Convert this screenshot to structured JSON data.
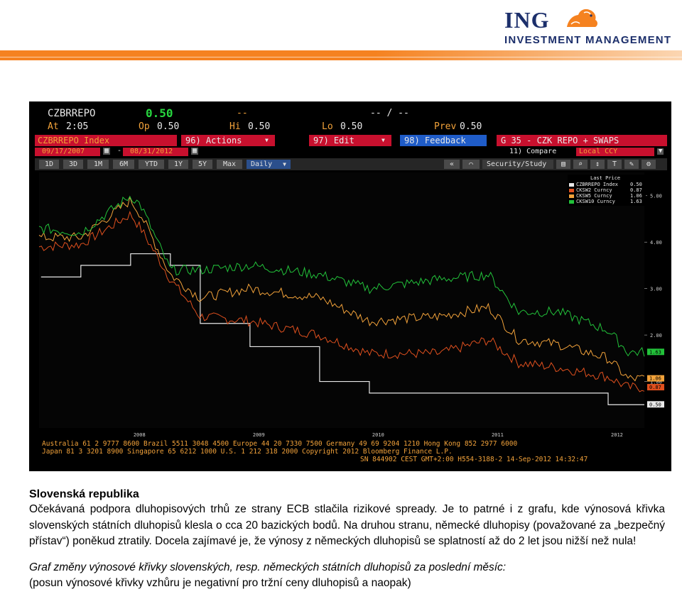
{
  "logo": {
    "brand": "ING",
    "subtitle": "INVESTMENT MANAGEMENT"
  },
  "colors": {
    "ing_blue": "#1c2f6b",
    "ing_orange": "#f58220",
    "terminal_amber": "#f2a23a",
    "terminal_red": "#c8102e"
  },
  "terminal": {
    "ticker": "CZBRREPO",
    "last": "0.50",
    "dash1": "--",
    "dash2": "-- / --",
    "at_label": "At",
    "at_time": "2:05",
    "op_label": "Op",
    "op_val": "0.50",
    "hi_label": "Hi",
    "hi_val": "0.50",
    "lo_label": "Lo",
    "lo_val": "0.50",
    "prev_label": "Prev",
    "prev_val": "0.50",
    "index_field": "CZBRREPO Index",
    "actions": "96) Actions",
    "edit": "97) Edit",
    "feedback": "98) Feedback",
    "graph_title": "G 35 - CZK REPO + SWAPS",
    "date_from": "09/17/2007",
    "date_to": "08/31/2012",
    "compare": "11) Compare",
    "currency": "Local CCY",
    "ranges": [
      "1D",
      "3D",
      "1M",
      "6M",
      "YTD",
      "1Y",
      "5Y",
      "Max"
    ],
    "period": "Daily",
    "security_study": "Security/Study",
    "legend_header": "Last Price",
    "legend": [
      {
        "name": "CZBRREPO Index",
        "value": "0.50",
        "color": "#e8e8e8"
      },
      {
        "name": "CKSW2 Curncy",
        "value": "0.87",
        "color": "#e0501e"
      },
      {
        "name": "CKSW5 Curncy",
        "value": "1.06",
        "color": "#f2a23a"
      },
      {
        "name": "CKSW10 Curncy",
        "value": "1.63",
        "color": "#22c23a"
      }
    ],
    "y_ticks": [
      "5.00",
      "4.00",
      "3.00",
      "2.00",
      "1.00"
    ],
    "end_labels": [
      "1.63",
      "1.06",
      "0.87",
      "0.50"
    ],
    "x_ticks": [
      "2007",
      "2008",
      "2009",
      "2010",
      "2011",
      "2012"
    ],
    "footer": [
      "Australia 61 2 9777 8600 Brazil 5511 3048 4500 Europe 44 20 7330 7500 Germany 49 69 9204 1210 Hong Kong 852 2977 6000",
      "Japan 81 3 3201 8900          Singapore 65 6212 1000     U.S. 1 212 318 2000        Copyright 2012 Bloomberg Finance L.P.",
      "SN 844902 CEST  GMT+2:00 H554-3188-2 14-Sep-2012 14:32:47"
    ]
  },
  "chart_data": {
    "type": "line",
    "xlabel": "",
    "ylabel": "",
    "ylim": [
      0,
      5.5
    ],
    "x": [
      "2007-09",
      "2008-01",
      "2008-06",
      "2008-07",
      "2008-10",
      "2009-01",
      "2009-06",
      "2010-01",
      "2010-06",
      "2011-01",
      "2011-06",
      "2011-09",
      "2012-01",
      "2012-06",
      "2012-08"
    ],
    "series": [
      {
        "name": "CZBRREPO Index",
        "values": [
          3.25,
          3.5,
          3.75,
          3.75,
          3.5,
          2.25,
          1.75,
          1.0,
          0.75,
          0.75,
          0.75,
          0.75,
          0.75,
          0.5,
          0.5
        ]
      },
      {
        "name": "CKSW2 Curncy",
        "values": [
          3.9,
          3.95,
          4.6,
          4.3,
          3.2,
          2.4,
          2.3,
          2.0,
          1.6,
          1.6,
          1.9,
          1.4,
          1.3,
          1.1,
          0.87
        ]
      },
      {
        "name": "CKSW5 Curncy",
        "values": [
          4.1,
          4.1,
          4.9,
          4.6,
          3.3,
          2.8,
          3.0,
          2.8,
          2.3,
          2.4,
          2.6,
          1.9,
          1.8,
          1.5,
          1.06
        ]
      },
      {
        "name": "CKSW10 Curncy",
        "values": [
          4.3,
          4.2,
          5.0,
          4.8,
          3.4,
          3.4,
          3.5,
          3.3,
          3.0,
          3.2,
          3.3,
          2.5,
          2.5,
          2.1,
          1.63
        ]
      }
    ]
  },
  "text": {
    "heading": "Slovenská republika",
    "paragraph": "Očekávaná podpora dluhopisových trhů ze strany ECB stlačila rizikové spready. Je to patrné i z grafu, kde výnosová křivka slovenských státních dluhopisů klesla o cca 20 bazických bodů. Na druhou stranu, německé dluhopisy (považované za „bezpečný přístav“) poněkud ztratily. Docela zajímavé je, že výnosy z německých dluhopisů se splatností až do 2 let jsou nižší než nula!",
    "caption_italic": "Graf změny výnosové křivky slovenských, resp. německých státních dluhopisů za poslední měsíc:",
    "caption_note": "(posun výnosové křivky vzhůru je negativní pro tržní ceny dluhopisů a naopak)"
  }
}
